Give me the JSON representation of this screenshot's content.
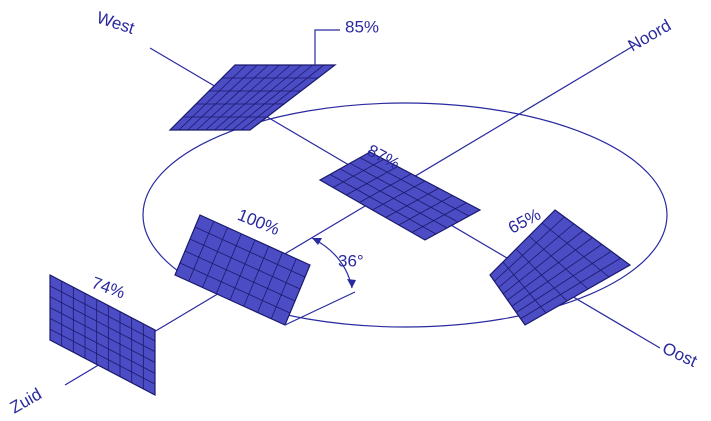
{
  "directions": {
    "west": "West",
    "noord": "Noord",
    "oost": "Oost",
    "zuid": "Zuid"
  },
  "panels": [
    {
      "label": "85%"
    },
    {
      "label": "87%"
    },
    {
      "label": "100%"
    },
    {
      "label": "65%"
    },
    {
      "label": "74%"
    }
  ],
  "tilt_angle": "36°"
}
